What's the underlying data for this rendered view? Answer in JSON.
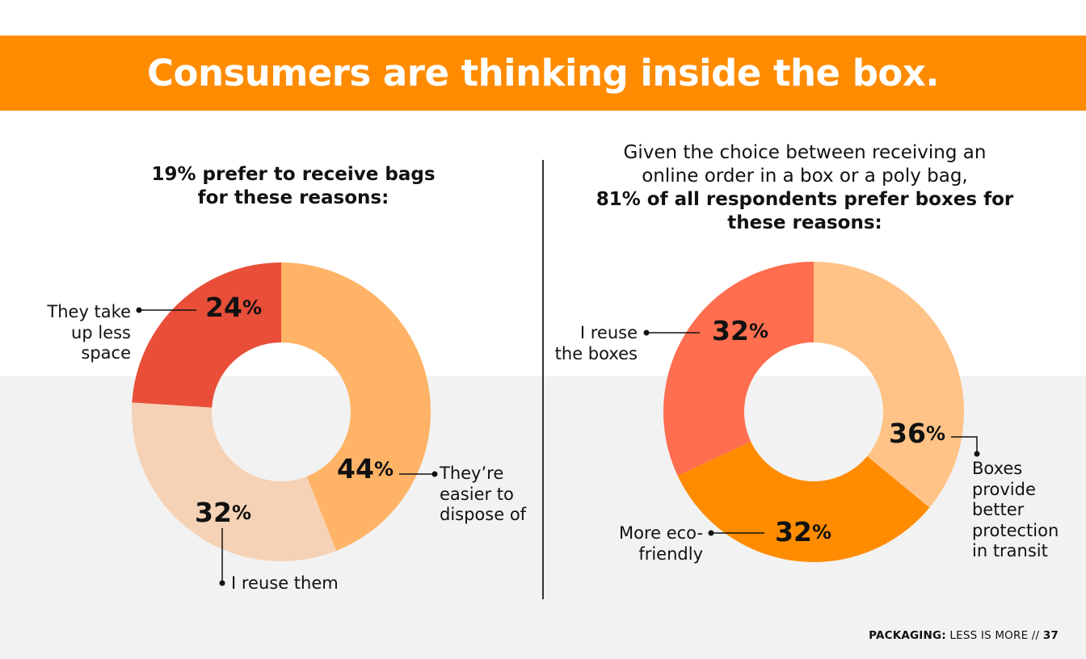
{
  "header": {
    "title": "Consumers are thinking inside the box."
  },
  "left": {
    "subtitle_line1": "19% prefer to receive bags",
    "subtitle_line2": "for these reasons:"
  },
  "right": {
    "subtitle_line1": "Given the choice between receiving an",
    "subtitle_line2": "online order in a box or a poly bag,",
    "subtitle_line3": "81% of all respondents prefer boxes for",
    "subtitle_line4": "these reasons:"
  },
  "chart_data": [
    {
      "type": "pie",
      "title": "19% prefer to receive bags for these reasons:",
      "donut": true,
      "slices": [
        {
          "label": "They’re easier to dispose of",
          "value": 44,
          "display": "44%",
          "color": "#ffb366"
        },
        {
          "label": "I reuse them",
          "value": 32,
          "display": "32%",
          "color": "#f5d2b5"
        },
        {
          "label": "They take up less space",
          "value": 24,
          "display": "24%",
          "color": "#e84e38"
        }
      ]
    },
    {
      "type": "pie",
      "title": "Given the choice between receiving an online order in a box or a poly bag, 81% of all respondents prefer boxes for these reasons:",
      "donut": true,
      "slices": [
        {
          "label": "Boxes provide better protection in transit",
          "value": 36,
          "display": "36%",
          "color": "#ffc387"
        },
        {
          "label": "More eco-friendly",
          "value": 32,
          "display": "32%",
          "color": "#ff8c00"
        },
        {
          "label": "I reuse the boxes",
          "value": 32,
          "display": "32%",
          "color": "#ff6e4f"
        }
      ]
    }
  ],
  "footer": {
    "brand": "PACKAGING:",
    "text": "LESS IS MORE //",
    "page": "37"
  }
}
